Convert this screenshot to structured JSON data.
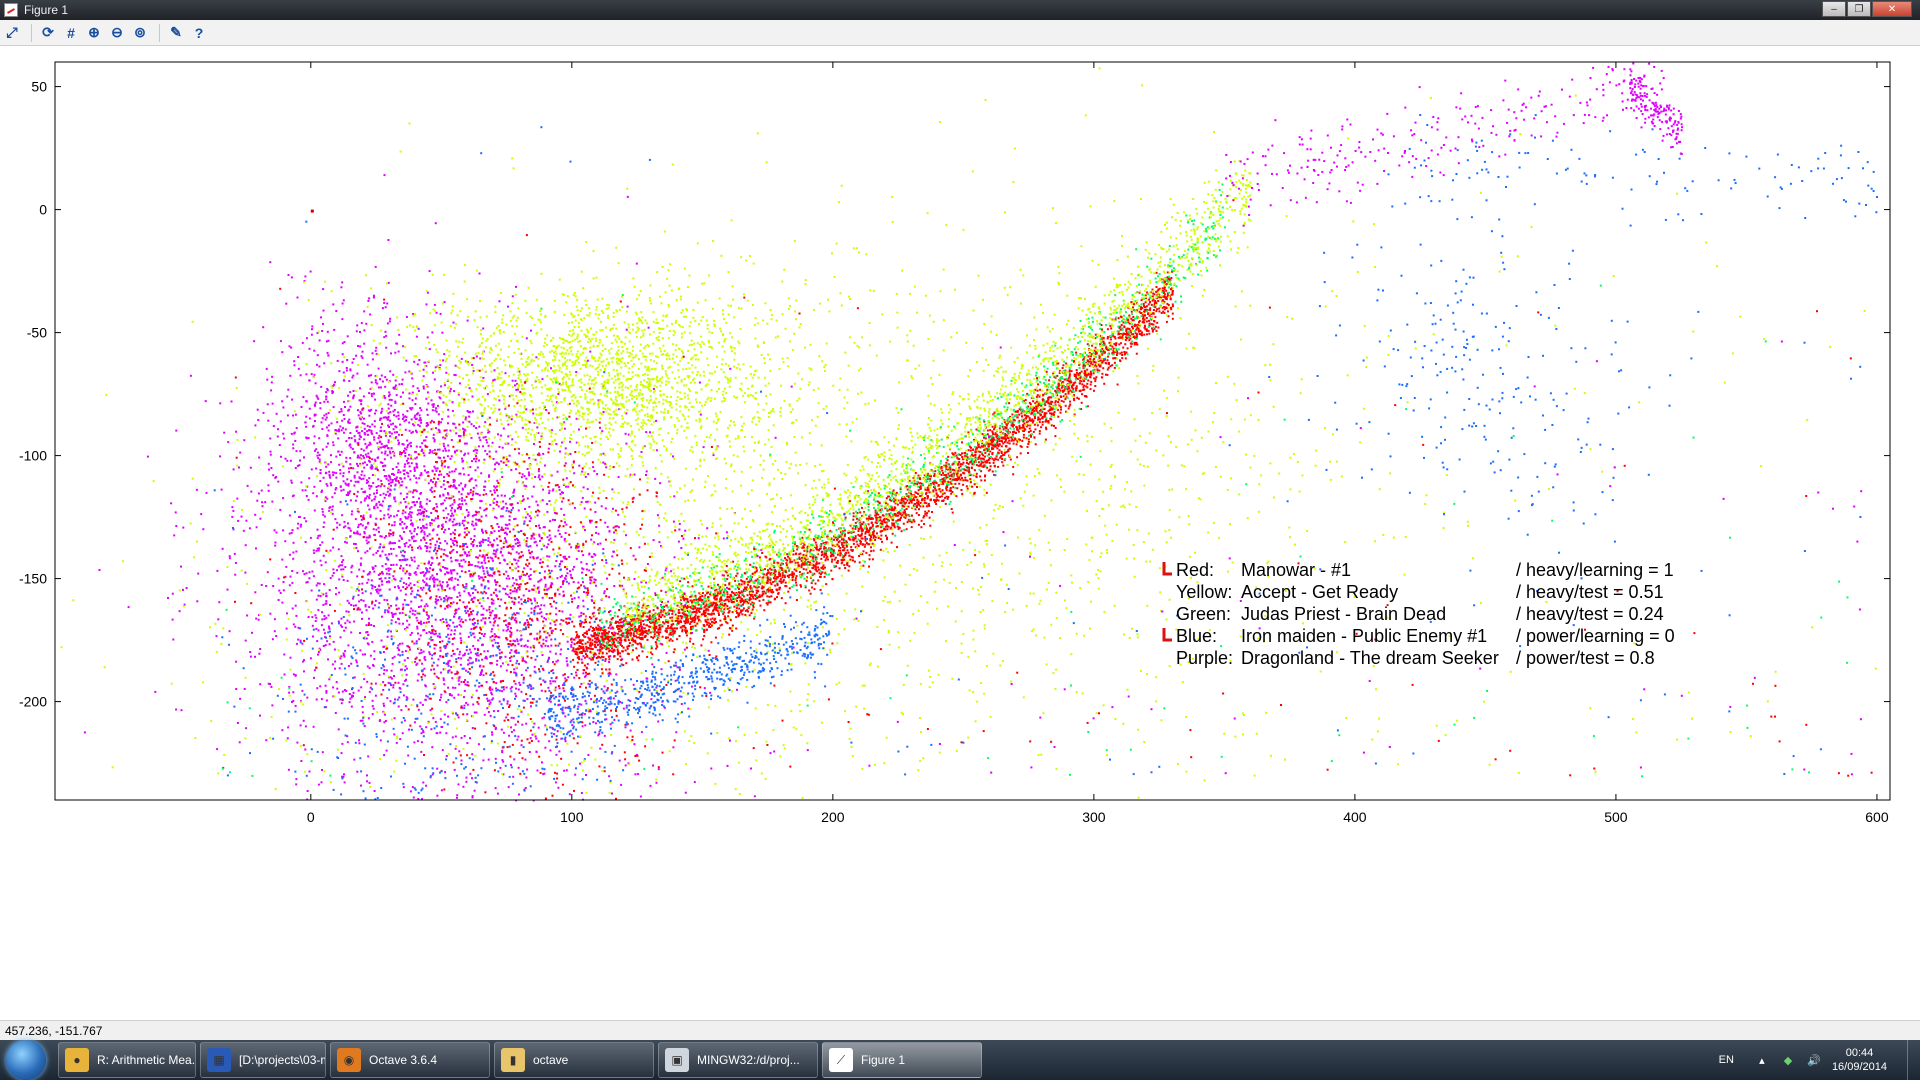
{
  "window": {
    "title": "Figure 1",
    "minimize_icon": "minimize-icon",
    "maximize_icon": "maximize-icon",
    "close_icon": "close-icon"
  },
  "toolbar": {
    "tools": [
      {
        "name": "axes-tool-icon",
        "glyph": "⤢"
      },
      {
        "name": "refresh-icon",
        "glyph": "⟳"
      },
      {
        "name": "grid-icon",
        "glyph": "#"
      },
      {
        "name": "zoom-in-icon",
        "glyph": "⊕"
      },
      {
        "name": "zoom-out-icon",
        "glyph": "⊖"
      },
      {
        "name": "zoom-auto-icon",
        "glyph": "⊚"
      },
      {
        "name": "settings-icon",
        "glyph": "✎"
      },
      {
        "name": "help-icon",
        "glyph": "?"
      }
    ]
  },
  "chart_data": {
    "type": "scatter",
    "title": "",
    "xlabel": "",
    "ylabel": "",
    "xlim": [
      -98,
      605
    ],
    "ylim": [
      -240,
      60
    ],
    "xticks": [
      0,
      100,
      200,
      300,
      400,
      500,
      600
    ],
    "yticks": [
      50,
      0,
      -50,
      -100,
      -150,
      -200
    ],
    "grid": false,
    "legend_placement": "lower-right",
    "series": [
      {
        "color": "#ff0000",
        "label": "Red:",
        "text": "Manowar - #1",
        "suffix": "/ heavy/learning = 1",
        "marker": true
      },
      {
        "color": "#ccff00",
        "label": "Yellow:",
        "text": "Accept - Get Ready",
        "suffix": "/ heavy/test = 0.51",
        "marker": false
      },
      {
        "color": "#00ff66",
        "label": "Green:",
        "text": "Judas Priest - Brain Dead",
        "suffix": "/ heavy/test = 0.24",
        "marker": false
      },
      {
        "color": "#1a6fff",
        "label": "Blue:",
        "text": "Iron maiden - Public Enemy #1",
        "suffix": "/ power/learning = 0",
        "marker": true
      },
      {
        "color": "#e000ff",
        "label": "Purple:",
        "text": "Dragonland - The dream Seeker",
        "suffix": "/ power/test = 0.8",
        "marker": false
      }
    ],
    "clusters": [
      {
        "series": 4,
        "cx": 55,
        "cy": -150,
        "sx": 38,
        "sy": 45,
        "n": 3200,
        "rot": 0.55
      },
      {
        "series": 4,
        "cx": 30,
        "cy": -100,
        "sx": 18,
        "sy": 30,
        "n": 900,
        "rot": 0.35
      },
      {
        "series": 1,
        "cx": 110,
        "cy": -68,
        "sx": 35,
        "sy": 18,
        "n": 1800,
        "rot": 0
      },
      {
        "series": 1,
        "cx": 200,
        "cy": -120,
        "sx": 110,
        "sy": 55,
        "n": 1800,
        "rot": 0.2
      },
      {
        "series": 0,
        "cx": 80,
        "cy": -160,
        "sx": 30,
        "sy": 40,
        "n": 700,
        "rot": 0.4
      },
      {
        "series": 3,
        "cx": 60,
        "cy": -190,
        "sx": 35,
        "sy": 30,
        "n": 400,
        "rot": 0.4
      },
      {
        "series": 3,
        "cx": 450,
        "cy": -70,
        "sx": 35,
        "sy": 25,
        "n": 220,
        "rot": -0.9
      }
    ],
    "bands": [
      {
        "series": 0,
        "x0": 100,
        "x1": 330,
        "n": 3600,
        "spread": 5,
        "a": -0.0018,
        "b": -178,
        "c": 0.22
      },
      {
        "series": 2,
        "x0": 110,
        "x1": 350,
        "n": 900,
        "spread": 7,
        "a": -0.0018,
        "b": -170,
        "c": 0.26
      },
      {
        "series": 1,
        "x0": 120,
        "x1": 360,
        "n": 1500,
        "spread": 9,
        "a": -0.0016,
        "b": -160,
        "c": 0.32
      },
      {
        "series": 3,
        "x0": 90,
        "x1": 200,
        "n": 600,
        "spread": 6,
        "a": -0.0012,
        "b": -205,
        "c": 0.18
      },
      {
        "series": 4,
        "x0": 350,
        "x1": 520,
        "n": 250,
        "spread": 8,
        "a": 0,
        "b": 10,
        "c": 0.25
      },
      {
        "series": 3,
        "x0": 420,
        "x1": 600,
        "n": 120,
        "spread": 10,
        "a": 0,
        "b": 20,
        "c": -0.04
      },
      {
        "series": 4,
        "x0": 505,
        "x1": 525,
        "n": 160,
        "spread": 4,
        "a": 0,
        "b": 50,
        "c": -0.9
      }
    ],
    "outlier_point": {
      "x": 0,
      "y": 0,
      "color": "#cc0000"
    }
  },
  "status": {
    "coordinates": "457.236, -151.767"
  },
  "taskbar": {
    "start_icon": "windows-start-icon",
    "items": [
      {
        "name": "chrome-task",
        "icon": "chrome-icon",
        "label": "R: Arithmetic Mea...",
        "color": "#e8b33a",
        "glyph": "●",
        "width": 138,
        "active": false
      },
      {
        "name": "projects-task",
        "icon": "film-icon",
        "label": "[D:\\projects\\03-m...",
        "color": "#2a5ab8",
        "glyph": "▦",
        "width": 126,
        "active": false
      },
      {
        "name": "octave-task",
        "icon": "octave-icon",
        "label": "Octave 3.6.4",
        "color": "#e07a20",
        "glyph": "◉",
        "width": 160,
        "active": false
      },
      {
        "name": "octave-folder-task",
        "icon": "folder-icon",
        "label": "octave",
        "color": "#e8c46a",
        "glyph": "▮",
        "width": 160,
        "active": false
      },
      {
        "name": "mingw-task",
        "icon": "terminal-icon",
        "label": "MINGW32:/d/proj...",
        "color": "#cfd6de",
        "glyph": "▣",
        "width": 160,
        "active": false
      },
      {
        "name": "figure-task",
        "icon": "figure-icon",
        "label": "Figure 1",
        "color": "#ffffff",
        "glyph": "⟋",
        "width": 160,
        "active": true
      }
    ],
    "language": "EN",
    "time": "00:44",
    "date": "16/09/2014"
  }
}
